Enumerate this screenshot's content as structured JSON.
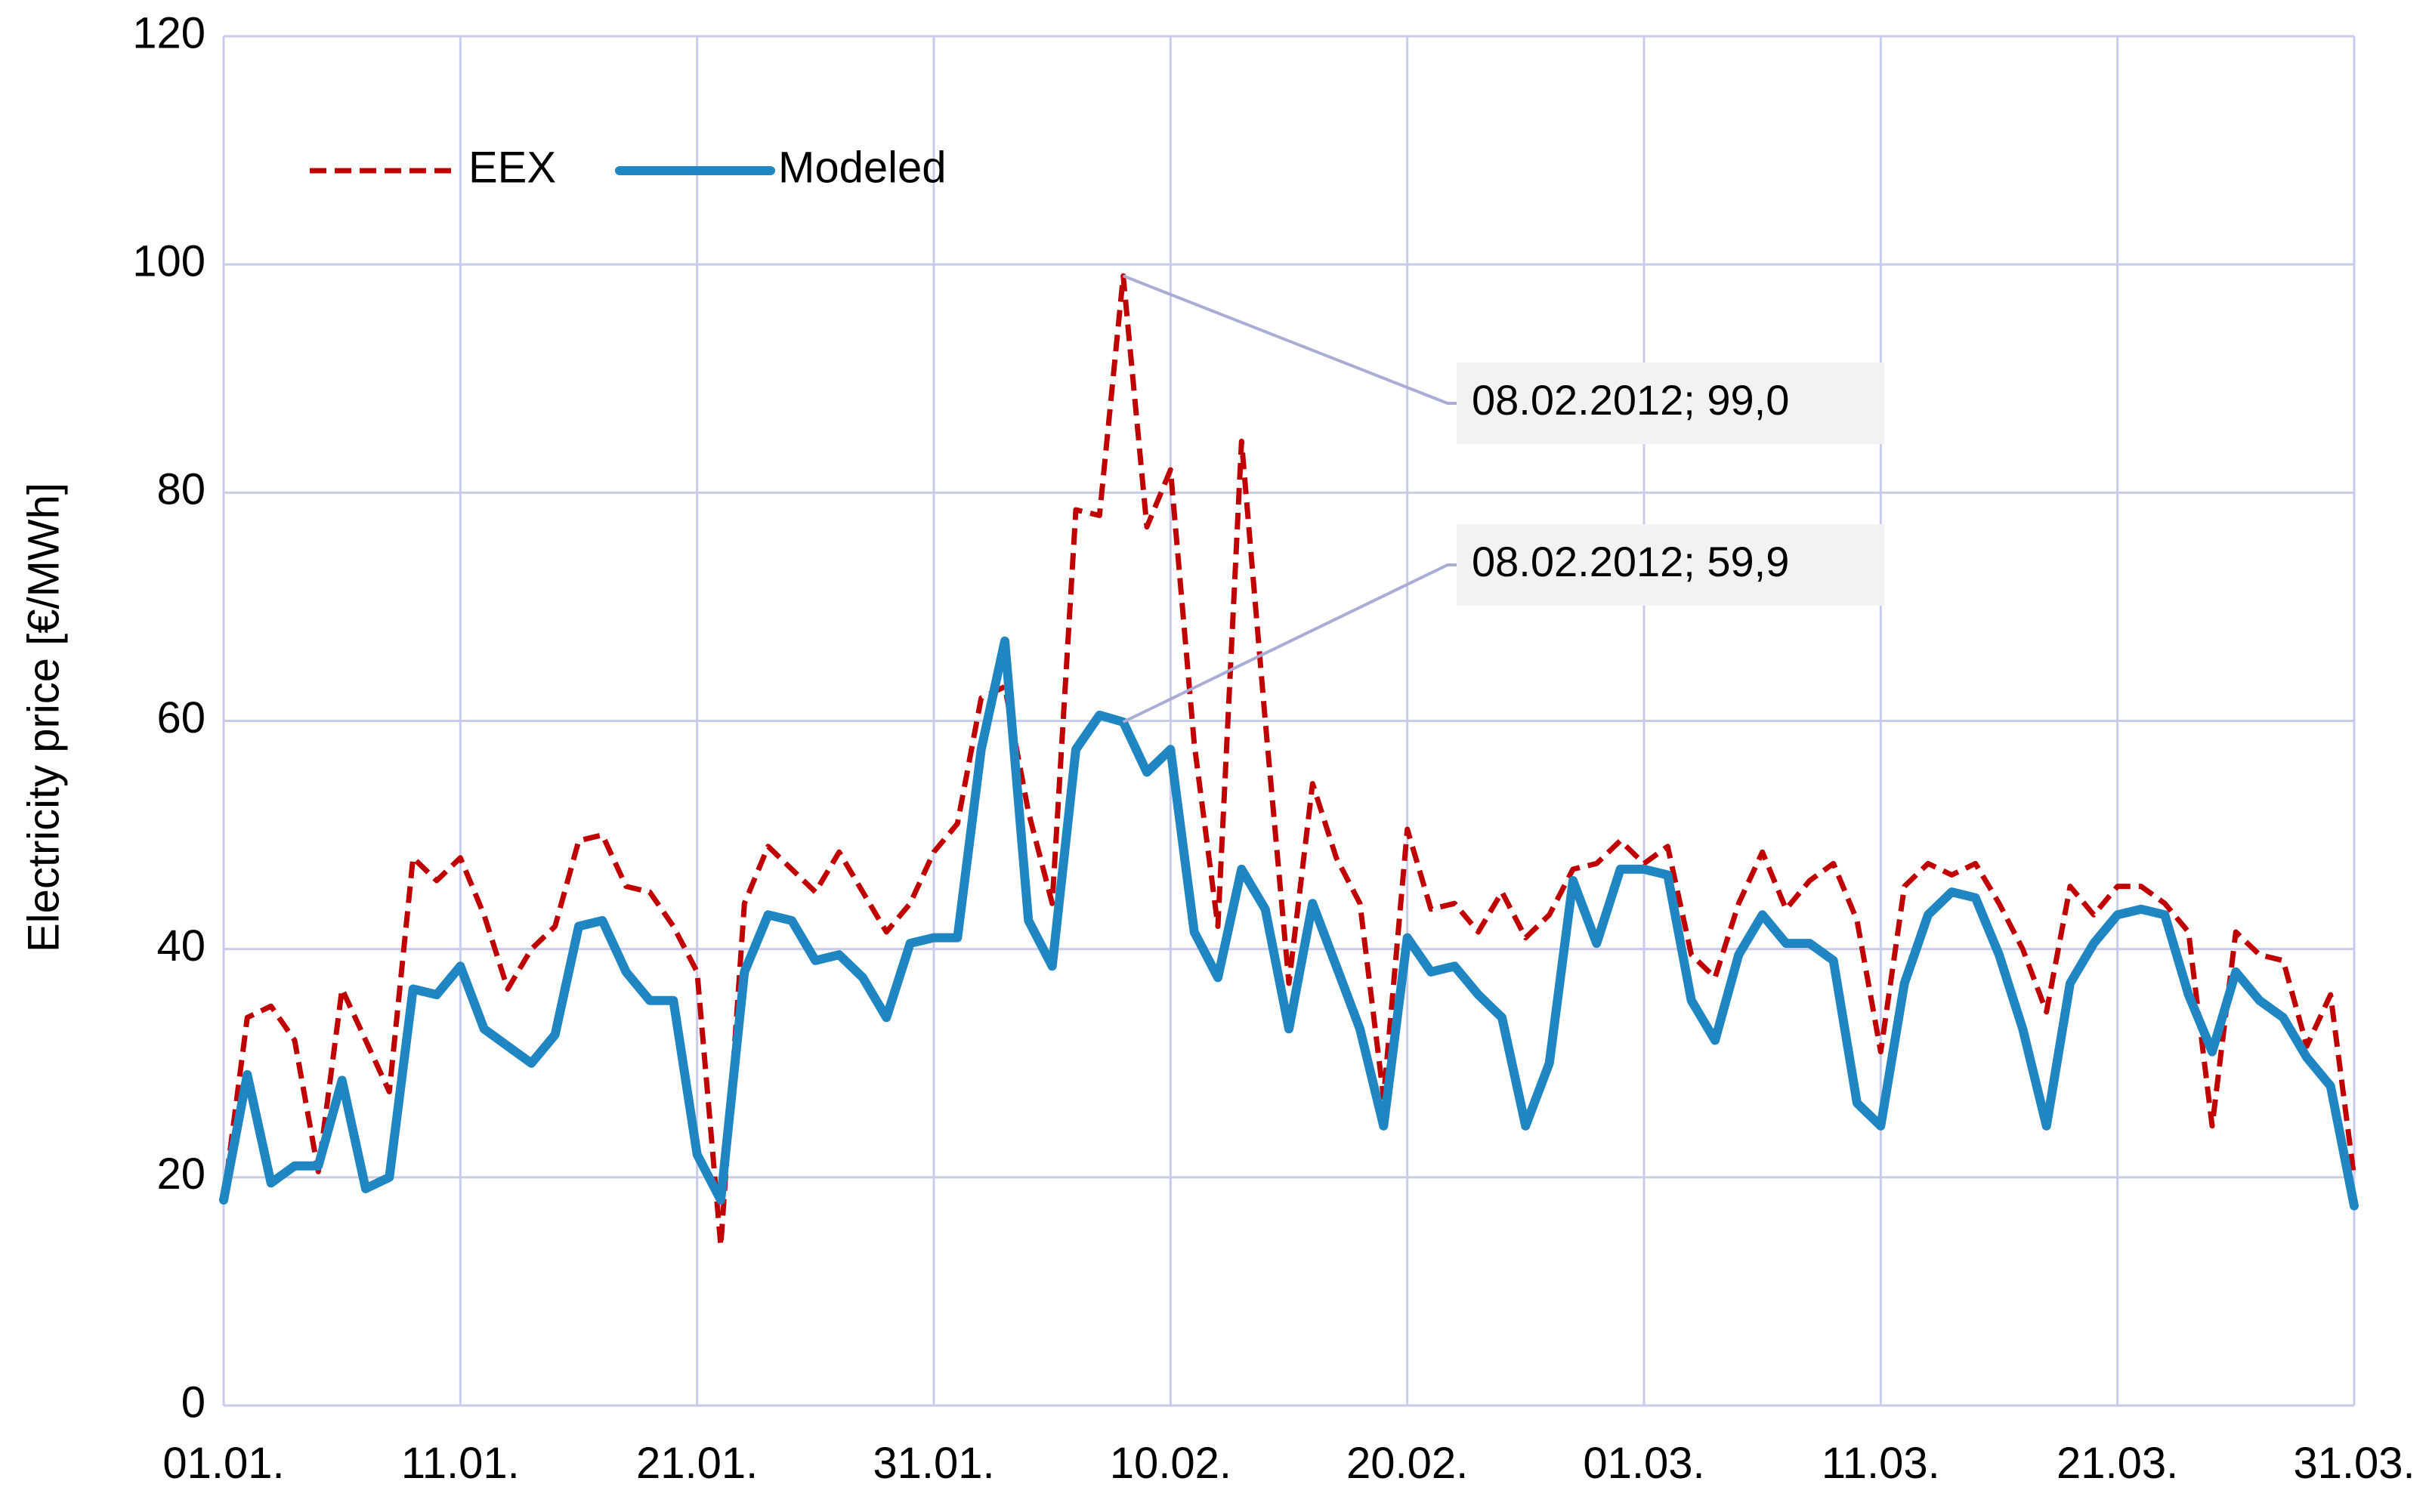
{
  "chart_data": {
    "type": "line",
    "ylabel": "Electricity price [€/MWh]",
    "xlabel": "",
    "ylim": [
      0,
      120
    ],
    "yticks": [
      0,
      20,
      40,
      60,
      80,
      100,
      120
    ],
    "x_range": [
      "01.01.2012",
      "31.03.2012"
    ],
    "xticks": [
      {
        "label": "01.01.",
        "day": 0
      },
      {
        "label": "11.01.",
        "day": 10
      },
      {
        "label": "21.01.",
        "day": 20
      },
      {
        "label": "31.01.",
        "day": 30
      },
      {
        "label": "10.02.",
        "day": 40
      },
      {
        "label": "20.02.",
        "day": 50
      },
      {
        "label": "01.03.",
        "day": 60
      },
      {
        "label": "11.03.",
        "day": 70
      },
      {
        "label": "21.03.",
        "day": 80
      },
      {
        "label": "31.03.",
        "day": 90
      }
    ],
    "grid": true,
    "legend_position": "top-left",
    "series": [
      {
        "name": "EEX",
        "color": "#C00000",
        "style": "dashed",
        "values": [
          18,
          34,
          35,
          32,
          20.5,
          36.5,
          32,
          27.5,
          48,
          46,
          48,
          43,
          36.5,
          40,
          42,
          49.5,
          50,
          45.5,
          45,
          42,
          38,
          14,
          44,
          49,
          47,
          45,
          48.5,
          45,
          41.5,
          44,
          48.5,
          51,
          62,
          63,
          52,
          44,
          78.5,
          78,
          99,
          77,
          82,
          58,
          42,
          84.5,
          60,
          37,
          54.5,
          48,
          44,
          27,
          50.5,
          43.5,
          44,
          41.5,
          45,
          41,
          43,
          47,
          47.5,
          49.5,
          47.5,
          49,
          39.5,
          37.5,
          44,
          48.5,
          43.5,
          46,
          47.5,
          42.5,
          31,
          45.5,
          47.5,
          46.5,
          47.5,
          44,
          40,
          34.5,
          45.5,
          43,
          45.5,
          45.5,
          44,
          41.5,
          24.5,
          41.5,
          39.5,
          39,
          31.5,
          36,
          20
        ]
      },
      {
        "name": "Modeled",
        "color": "#1F86C1",
        "style": "solid",
        "values": [
          18,
          29,
          19.5,
          21,
          21,
          28.5,
          19,
          20,
          36.5,
          36,
          38.5,
          33,
          31.5,
          30,
          32.5,
          42,
          42.5,
          38,
          35.5,
          35.5,
          22,
          18,
          38,
          43,
          42.5,
          39,
          39.5,
          37.5,
          34,
          40.5,
          41,
          41,
          57.5,
          67,
          42.5,
          38.5,
          57.5,
          60.5,
          59.9,
          55.5,
          57.5,
          41.5,
          37.5,
          47,
          43.5,
          33,
          44,
          38.5,
          33,
          24.5,
          41,
          38,
          38.5,
          36,
          34,
          24.5,
          30,
          46,
          40.5,
          47,
          47,
          46.5,
          35.5,
          32,
          39.5,
          43,
          40.5,
          40.5,
          39,
          26.5,
          24.5,
          37,
          43,
          45,
          44.5,
          39.5,
          33,
          24.5,
          37,
          40.5,
          43,
          43.5,
          43,
          36,
          31,
          38,
          35.5,
          34,
          30.5,
          28,
          17.5
        ]
      }
    ],
    "annotations": [
      {
        "series": "EEX",
        "day": 38,
        "value": 99.0,
        "text": "08.02.2012;  99,0"
      },
      {
        "series": "Modeled",
        "day": 38,
        "value": 59.9,
        "text": "08.02.2012;  59,9"
      }
    ]
  }
}
